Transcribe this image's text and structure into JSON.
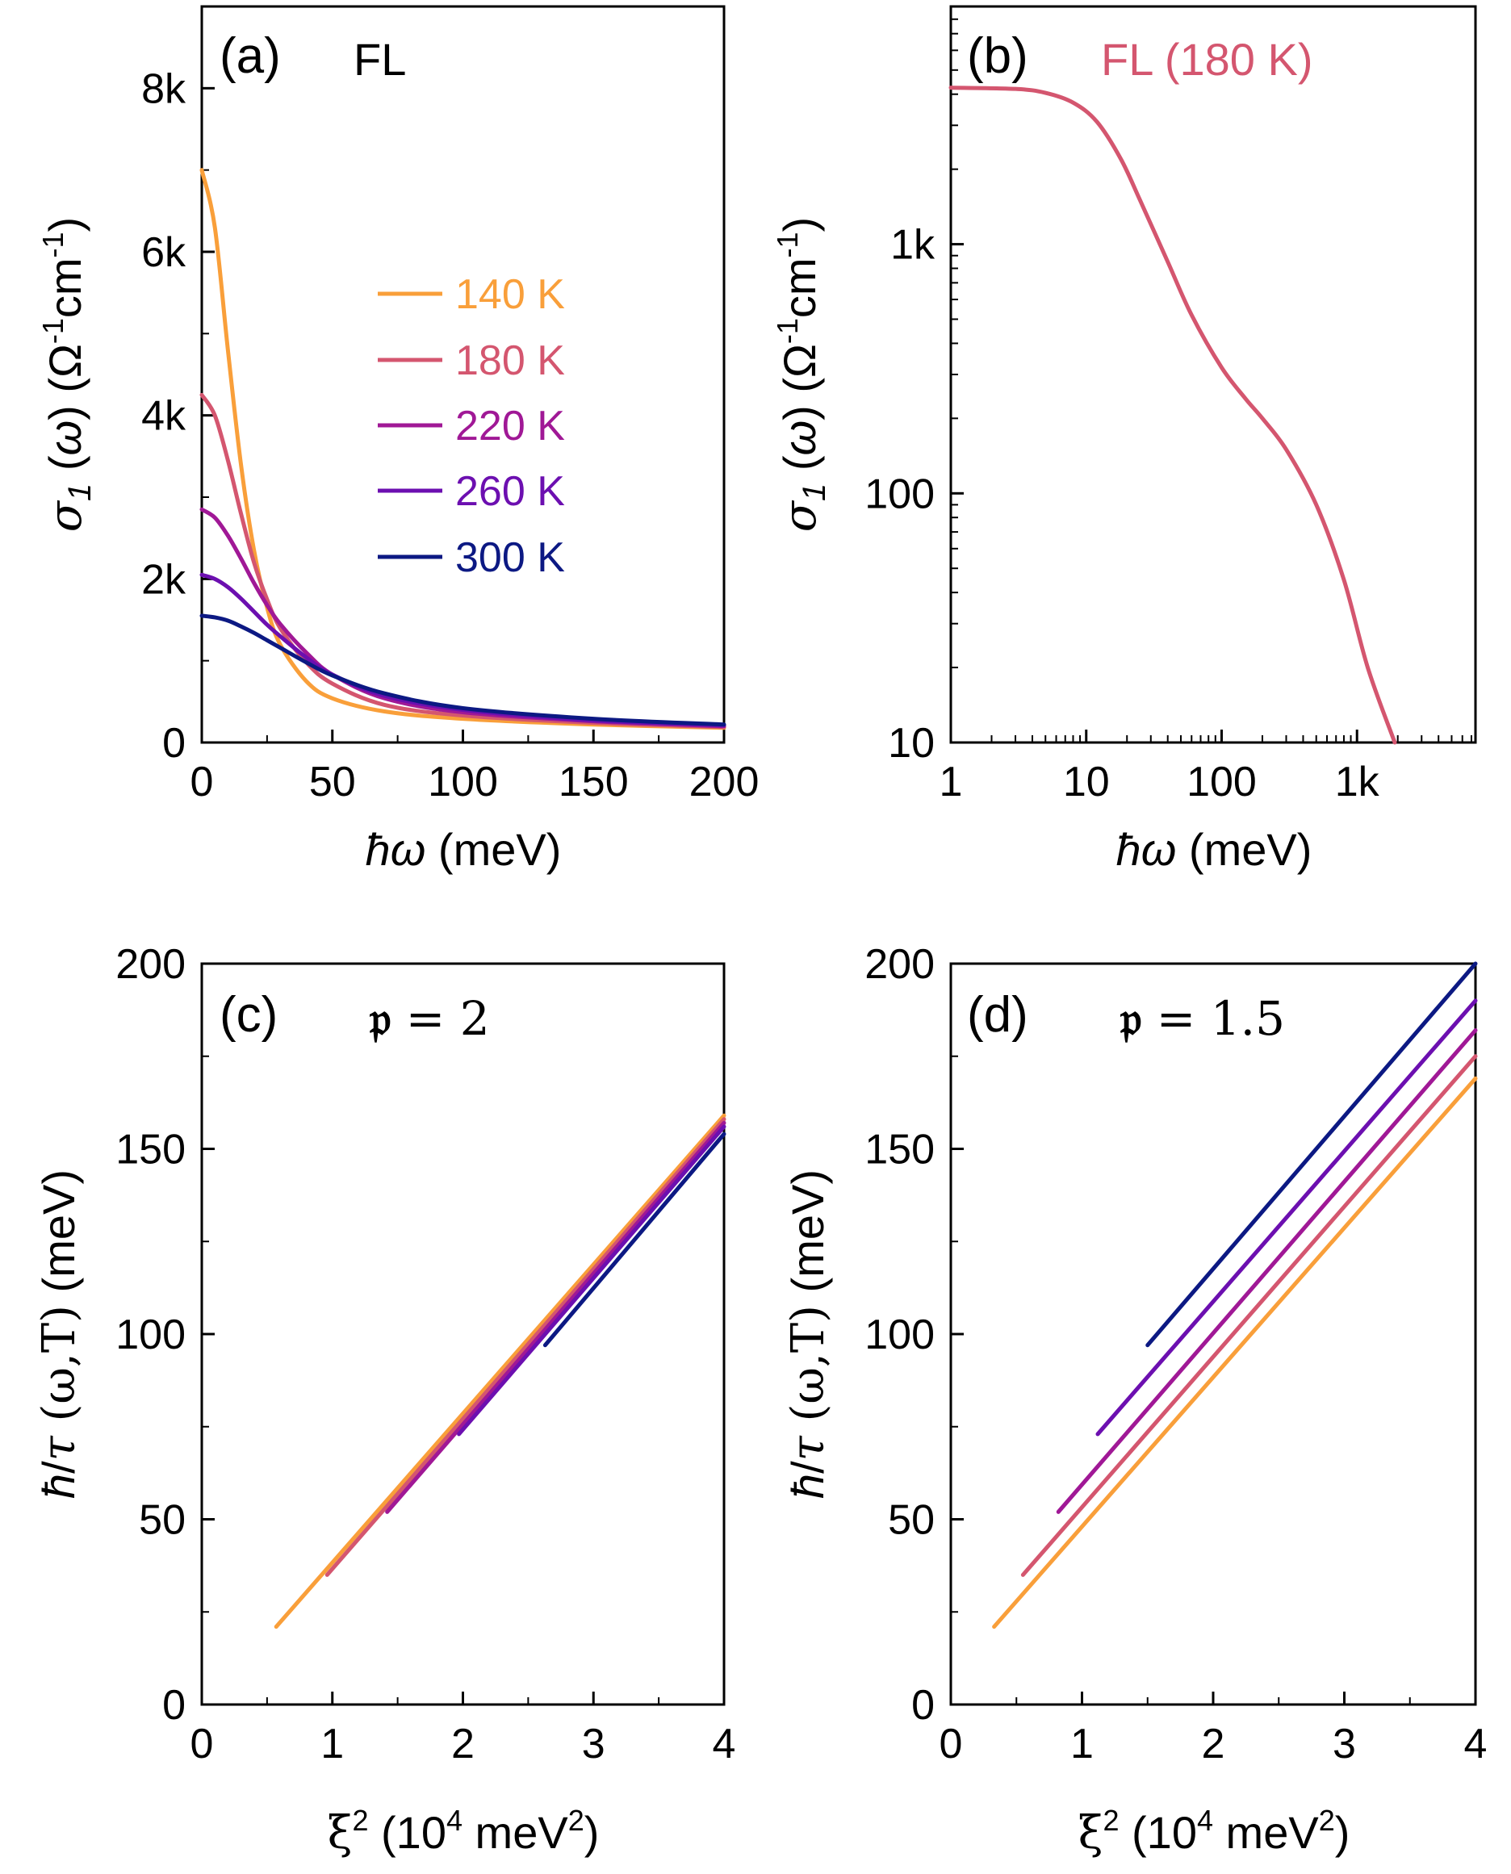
{
  "chart_data": [
    {
      "panel": "(a)",
      "type": "line",
      "title": "FL",
      "xlabel": "ħω (meV)",
      "ylabel": "σ1 (ω) (Ω-1cm-1)",
      "xlim": [
        0,
        200
      ],
      "ylim": [
        0,
        9000
      ],
      "xticks": [
        0,
        50,
        100,
        150,
        200
      ],
      "xtick_labels": [
        "0",
        "50",
        "100",
        "150",
        "200"
      ],
      "yticks": [
        0,
        2000,
        4000,
        6000,
        8000
      ],
      "ytick_labels": [
        "0",
        "2k",
        "4k",
        "6k",
        "8k"
      ],
      "legend_position": "center-right",
      "series": [
        {
          "name": "140 K",
          "color": "#f99f3a",
          "values": [
            [
              0,
              7000
            ],
            [
              5,
              6300
            ],
            [
              10,
              4800
            ],
            [
              15,
              3400
            ],
            [
              20,
              2350
            ],
            [
              25,
              1650
            ],
            [
              30,
              1200
            ],
            [
              40,
              750
            ],
            [
              50,
              540
            ],
            [
              70,
              380
            ],
            [
              100,
              290
            ],
            [
              150,
              220
            ],
            [
              200,
              180
            ]
          ]
        },
        {
          "name": "180 K",
          "color": "#d4566f",
          "values": [
            [
              0,
              4250
            ],
            [
              5,
              4000
            ],
            [
              10,
              3450
            ],
            [
              15,
              2800
            ],
            [
              20,
              2200
            ],
            [
              25,
              1750
            ],
            [
              30,
              1400
            ],
            [
              40,
              980
            ],
            [
              50,
              720
            ],
            [
              70,
              460
            ],
            [
              100,
              330
            ],
            [
              150,
              240
            ],
            [
              200,
              190
            ]
          ]
        },
        {
          "name": "220 K",
          "color": "#a01896",
          "values": [
            [
              0,
              2850
            ],
            [
              5,
              2750
            ],
            [
              10,
              2530
            ],
            [
              15,
              2250
            ],
            [
              20,
              1950
            ],
            [
              25,
              1680
            ],
            [
              30,
              1450
            ],
            [
              40,
              1100
            ],
            [
              50,
              830
            ],
            [
              70,
              540
            ],
            [
              100,
              370
            ],
            [
              150,
              260
            ],
            [
              200,
              200
            ]
          ]
        },
        {
          "name": "260 K",
          "color": "#6c0fb0",
          "values": [
            [
              0,
              2050
            ],
            [
              5,
              2000
            ],
            [
              10,
              1900
            ],
            [
              15,
              1760
            ],
            [
              20,
              1600
            ],
            [
              25,
              1440
            ],
            [
              30,
              1300
            ],
            [
              40,
              1040
            ],
            [
              50,
              830
            ],
            [
              70,
              570
            ],
            [
              100,
              400
            ],
            [
              150,
              270
            ],
            [
              200,
              210
            ]
          ]
        },
        {
          "name": "300 K",
          "color": "#0c1983",
          "values": [
            [
              0,
              1550
            ],
            [
              5,
              1530
            ],
            [
              10,
              1490
            ],
            [
              15,
              1420
            ],
            [
              20,
              1340
            ],
            [
              25,
              1250
            ],
            [
              30,
              1160
            ],
            [
              40,
              980
            ],
            [
              50,
              820
            ],
            [
              70,
              600
            ],
            [
              100,
              420
            ],
            [
              150,
              290
            ],
            [
              200,
              220
            ]
          ]
        }
      ]
    },
    {
      "panel": "(b)",
      "type": "line",
      "title": "FL (180 K)",
      "title_color": "#d4566f",
      "xlabel": "ħω (meV)",
      "ylabel": "σ1 (ω) (Ω-1cm-1)",
      "xscale": "log",
      "yscale": "log",
      "xlim": [
        1,
        7500
      ],
      "ylim": [
        10,
        9000
      ],
      "xtick_labels": [
        "1",
        "10",
        "100",
        "1k"
      ],
      "ytick_labels": [
        "10",
        "100",
        "1k"
      ],
      "series": [
        {
          "name": "180 K",
          "color": "#d4566f",
          "values": [
            [
              1,
              4250
            ],
            [
              3,
              4200
            ],
            [
              5,
              4050
            ],
            [
              8,
              3700
            ],
            [
              12,
              3100
            ],
            [
              18,
              2200
            ],
            [
              25,
              1500
            ],
            [
              40,
              850
            ],
            [
              60,
              520
            ],
            [
              100,
              320
            ],
            [
              150,
              240
            ],
            [
              200,
              200
            ],
            [
              300,
              150
            ],
            [
              500,
              90
            ],
            [
              800,
              45
            ],
            [
              1200,
              20
            ],
            [
              1900,
              10
            ]
          ]
        }
      ]
    },
    {
      "panel": "(c)",
      "type": "line",
      "title": "𝔭 = 2",
      "xlabel": "ξ2 (104 meV2)",
      "ylabel": "ħ/τ (ω,T) (meV)",
      "xlim": [
        0,
        4
      ],
      "ylim": [
        0,
        200
      ],
      "xticks": [
        0,
        1,
        2,
        3,
        4
      ],
      "xtick_labels": [
        "0",
        "1",
        "2",
        "3",
        "4"
      ],
      "yticks": [
        0,
        50,
        100,
        150,
        200
      ],
      "ytick_labels": [
        "0",
        "50",
        "100",
        "150",
        "200"
      ],
      "series": [
        {
          "name": "140 K",
          "color": "#f99f3a",
          "values": [
            [
              0.57,
              21
            ],
            [
              4.0,
              159
            ]
          ]
        },
        {
          "name": "180 K",
          "color": "#d4566f",
          "values": [
            [
              0.96,
              35
            ],
            [
              4.0,
              158
            ]
          ]
        },
        {
          "name": "220 K",
          "color": "#a01896",
          "values": [
            [
              1.42,
              52
            ],
            [
              4.0,
              157
            ]
          ]
        },
        {
          "name": "260 K",
          "color": "#6c0fb0",
          "values": [
            [
              1.97,
              73
            ],
            [
              4.0,
              156
            ]
          ]
        },
        {
          "name": "300 K",
          "color": "#0c1983",
          "values": [
            [
              2.63,
              97
            ],
            [
              4.0,
              154
            ]
          ]
        }
      ]
    },
    {
      "panel": "(d)",
      "type": "line",
      "title": "𝔭 = 1.5",
      "xlabel": "ξ2 (104 meV2)",
      "ylabel": "ħ/τ (ω,T) (meV)",
      "xlim": [
        0,
        4
      ],
      "ylim": [
        0,
        200
      ],
      "xticks": [
        0,
        1,
        2,
        3,
        4
      ],
      "xtick_labels": [
        "0",
        "1",
        "2",
        "3",
        "4"
      ],
      "yticks": [
        0,
        50,
        100,
        150,
        200
      ],
      "ytick_labels": [
        "0",
        "50",
        "100",
        "150",
        "200"
      ],
      "series": [
        {
          "name": "140 K",
          "color": "#f99f3a",
          "values": [
            [
              0.33,
              21
            ],
            [
              4.0,
              169
            ]
          ]
        },
        {
          "name": "180 K",
          "color": "#d4566f",
          "values": [
            [
              0.55,
              35
            ],
            [
              4.0,
              175
            ]
          ]
        },
        {
          "name": "220 K",
          "color": "#a01896",
          "values": [
            [
              0.82,
              52
            ],
            [
              4.0,
              182
            ]
          ]
        },
        {
          "name": "260 K",
          "color": "#6c0fb0",
          "values": [
            [
              1.12,
              73
            ],
            [
              4.0,
              190
            ]
          ]
        },
        {
          "name": "300 K",
          "color": "#0c1983",
          "values": [
            [
              1.5,
              97
            ],
            [
              4.0,
              200
            ]
          ]
        }
      ]
    }
  ]
}
